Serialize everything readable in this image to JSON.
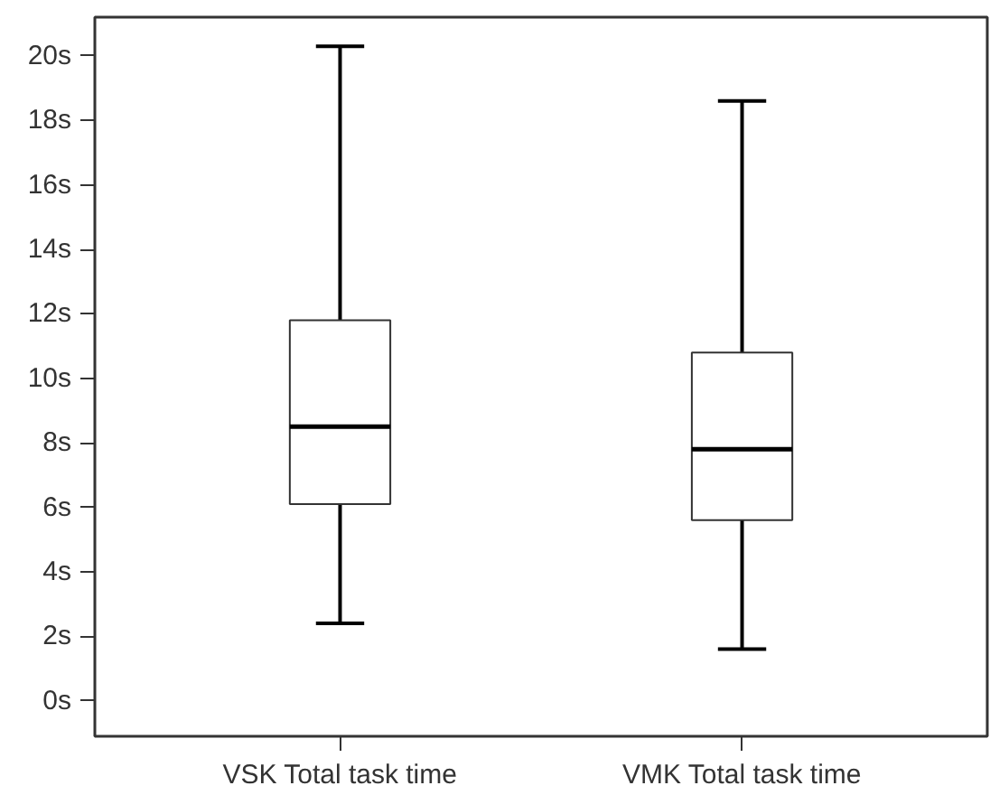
{
  "chart_data": {
    "type": "box",
    "categories": [
      "VSK Total task time",
      "VMK Total task time"
    ],
    "boxes": [
      {
        "low": 2.4,
        "q1": 6.1,
        "median": 8.5,
        "q3": 11.8,
        "high": 20.3
      },
      {
        "low": 1.6,
        "q1": 5.6,
        "median": 7.8,
        "q3": 10.8,
        "high": 18.6
      }
    ],
    "ylim": [
      -1.1,
      21.2
    ],
    "yticks": [
      {
        "value": 0,
        "label": "0s"
      },
      {
        "value": 2,
        "label": "2s"
      },
      {
        "value": 4,
        "label": "4s"
      },
      {
        "value": 6,
        "label": "6s"
      },
      {
        "value": 8,
        "label": "8s"
      },
      {
        "value": 10,
        "label": "10s"
      },
      {
        "value": 12,
        "label": "12s"
      },
      {
        "value": 14,
        "label": "14s"
      },
      {
        "value": 16,
        "label": "16s"
      },
      {
        "value": 18,
        "label": "18s"
      },
      {
        "value": 20,
        "label": "20s"
      }
    ],
    "grid": false
  }
}
